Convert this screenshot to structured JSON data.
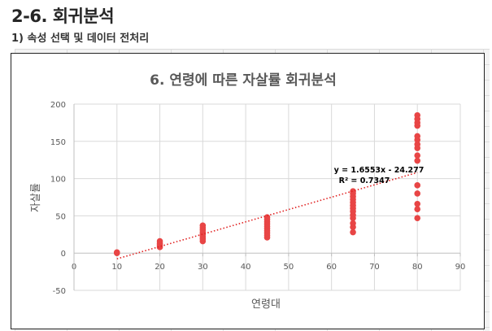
{
  "page": {
    "title": "2-6. 회귀분석",
    "subtitle": "1) 속성 선택 및 데이터 전처리"
  },
  "chart_data": {
    "type": "scatter",
    "title": "6. 연령에 따른 자살률 회귀분석",
    "xlabel": "연령대",
    "ylabel": "자살률",
    "xlim": [
      0,
      90
    ],
    "ylim": [
      -50,
      200
    ],
    "xticks": [
      0,
      10,
      20,
      30,
      40,
      50,
      60,
      70,
      80,
      90
    ],
    "yticks": [
      -50,
      0,
      50,
      100,
      150,
      200
    ],
    "grid": true,
    "legend": "none",
    "point_color": "#e84545",
    "trend_color": "#e02020",
    "series": [
      {
        "points": [
          [
            10,
            0
          ],
          [
            10,
            1
          ],
          [
            20,
            8
          ],
          [
            20,
            11
          ],
          [
            20,
            13
          ],
          [
            20,
            16
          ],
          [
            30,
            16
          ],
          [
            30,
            19
          ],
          [
            30,
            22
          ],
          [
            30,
            25
          ],
          [
            30,
            28
          ],
          [
            30,
            31
          ],
          [
            30,
            34
          ],
          [
            30,
            37
          ],
          [
            45,
            21
          ],
          [
            45,
            24
          ],
          [
            45,
            27
          ],
          [
            45,
            30
          ],
          [
            45,
            33
          ],
          [
            45,
            36
          ],
          [
            45,
            39
          ],
          [
            45,
            42
          ],
          [
            45,
            45
          ],
          [
            45,
            48
          ],
          [
            65,
            28
          ],
          [
            65,
            35
          ],
          [
            65,
            40
          ],
          [
            65,
            47
          ],
          [
            65,
            51
          ],
          [
            65,
            56
          ],
          [
            65,
            60
          ],
          [
            65,
            64
          ],
          [
            65,
            68
          ],
          [
            65,
            72
          ],
          [
            65,
            76
          ],
          [
            65,
            80
          ],
          [
            65,
            83
          ],
          [
            80,
            47
          ],
          [
            80,
            59
          ],
          [
            80,
            66
          ],
          [
            80,
            80
          ],
          [
            80,
            91
          ],
          [
            80,
            124
          ],
          [
            80,
            131
          ],
          [
            80,
            141
          ],
          [
            80,
            146
          ],
          [
            80,
            152
          ],
          [
            80,
            157
          ],
          [
            80,
            171
          ],
          [
            80,
            175
          ],
          [
            80,
            180
          ],
          [
            80,
            185
          ]
        ]
      }
    ],
    "trendline": {
      "slope": 1.6553,
      "intercept": -24.277,
      "x_range": [
        10,
        80
      ],
      "equation": "y = 1.6553x - 24.277",
      "r_squared": "R² = 0.7347"
    }
  }
}
